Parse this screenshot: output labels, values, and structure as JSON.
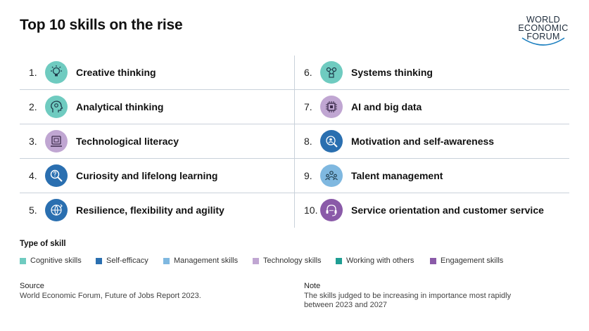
{
  "chart_data": {
    "type": "table",
    "title": "Top 10 skills on the rise",
    "rows": [
      {
        "rank": "1.",
        "skill": "Creative thinking",
        "type": "Cognitive skills",
        "icon": "lightbulb-icon"
      },
      {
        "rank": "2.",
        "skill": "Analytical thinking",
        "type": "Cognitive skills",
        "icon": "head-gears-icon"
      },
      {
        "rank": "3.",
        "skill": "Technological literacy",
        "type": "Technology skills",
        "icon": "laptop-icon"
      },
      {
        "rank": "4.",
        "skill": "Curiosity and lifelong learning",
        "type": "Self-efficacy",
        "icon": "magnifier-question-icon"
      },
      {
        "rank": "5.",
        "skill": "Resilience, flexibility and agility",
        "type": "Self-efficacy",
        "icon": "globe-arrows-icon"
      },
      {
        "rank": "6.",
        "skill": "Systems thinking",
        "type": "Cognitive skills",
        "icon": "network-icon"
      },
      {
        "rank": "7.",
        "skill": "AI and big data",
        "type": "Technology skills",
        "icon": "chip-icon"
      },
      {
        "rank": "8.",
        "skill": "Motivation and self-awareness",
        "type": "Self-efficacy",
        "icon": "person-search-icon"
      },
      {
        "rank": "9.",
        "skill": "Talent management",
        "type": "Management skills",
        "icon": "team-icon"
      },
      {
        "rank": "10.",
        "skill": "Service orientation and customer service",
        "type": "Engagement skills",
        "icon": "headset-icon"
      }
    ]
  },
  "logo": {
    "line1": "WORLD",
    "line2": "ECONOMIC",
    "line3": "FORUM"
  },
  "legend": {
    "title": "Type of skill",
    "items": [
      {
        "label": "Cognitive skills",
        "color": "#6fcbc0"
      },
      {
        "label": "Self-efficacy",
        "color": "#2a6fb0"
      },
      {
        "label": "Management skills",
        "color": "#7fb8e0"
      },
      {
        "label": "Technology skills",
        "color": "#c0a6d2"
      },
      {
        "label": "Working with others",
        "color": "#1f9e93"
      },
      {
        "label": "Engagement skills",
        "color": "#8a5aa8"
      }
    ]
  },
  "source": {
    "heading": "Source",
    "text": "World Economic Forum, Future of Jobs Report 2023."
  },
  "note": {
    "heading": "Note",
    "text": "The skills judged to be increasing in importance most rapidly between 2023 and 2027"
  }
}
